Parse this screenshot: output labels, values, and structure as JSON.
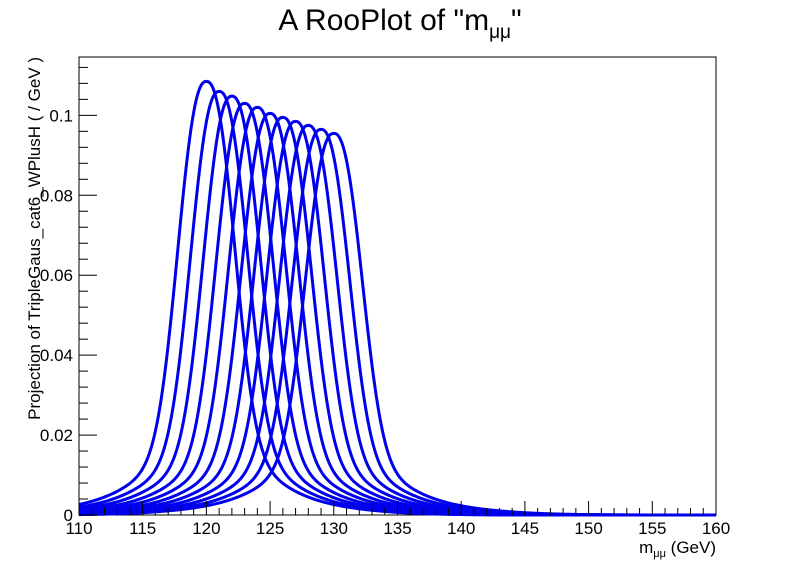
{
  "chart_data": {
    "type": "line",
    "title": "A RooPlot of \"m",
    "title_sub": "μμ",
    "title_end": "\"",
    "xlabel": "m",
    "xlabel_sub": "μμ",
    "xlabel_end": " (GeV)",
    "ylabel": "Projection of TripleGaus_cat6_WPlusH ( / GeV )",
    "xlim": [
      110,
      160
    ],
    "ylim": [
      0,
      0.1146
    ],
    "x_ticks": [
      "110",
      "115",
      "120",
      "125",
      "130",
      "135",
      "140",
      "145",
      "150",
      "155",
      "160"
    ],
    "y_ticks": [
      "0",
      "0.02",
      "0.04",
      "0.06",
      "0.08",
      "0.1"
    ],
    "y_tick_values": [
      0,
      0.02,
      0.04,
      0.06,
      0.08,
      0.1
    ],
    "grid": false,
    "line_color": "#0000ee",
    "series": [
      {
        "mean": 120,
        "peak": 0.1085
      },
      {
        "mean": 121,
        "peak": 0.106
      },
      {
        "mean": 122,
        "peak": 0.1048
      },
      {
        "mean": 123,
        "peak": 0.103
      },
      {
        "mean": 124,
        "peak": 0.102
      },
      {
        "mean": 125,
        "peak": 0.1005
      },
      {
        "mean": 126,
        "peak": 0.0995
      },
      {
        "mean": 127,
        "peak": 0.0985
      },
      {
        "mean": 128,
        "peak": 0.0975
      },
      {
        "mean": 129,
        "peak": 0.0965
      },
      {
        "mean": 130,
        "peak": 0.0955
      }
    ]
  }
}
